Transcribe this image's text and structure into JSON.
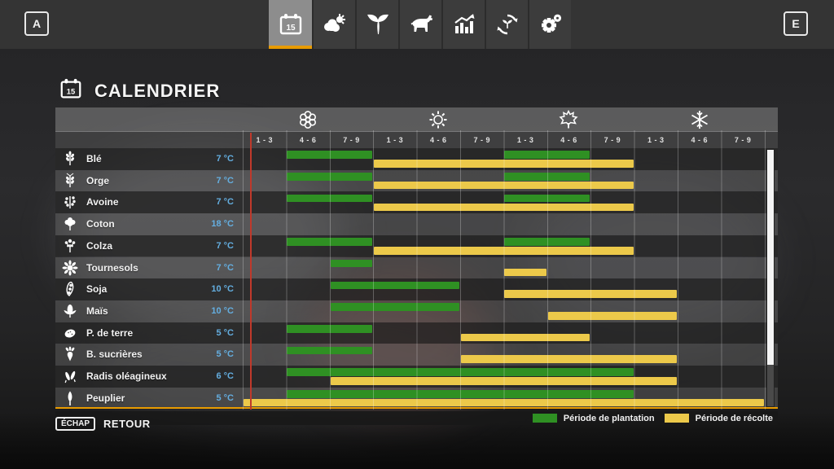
{
  "topbar": {
    "left_key": "A",
    "right_key": "E",
    "tabs": [
      {
        "name": "calendar",
        "active": true
      },
      {
        "name": "weather",
        "active": false
      },
      {
        "name": "crops",
        "active": false
      },
      {
        "name": "animals",
        "active": false
      },
      {
        "name": "statistics",
        "active": false
      },
      {
        "name": "crop-rotation",
        "active": false
      },
      {
        "name": "settings",
        "active": false
      }
    ]
  },
  "header": {
    "title": "CALENDRIER",
    "calendar_day": "15"
  },
  "calendar": {
    "seasons": [
      "spring",
      "summer",
      "autumn",
      "winter"
    ],
    "period_labels": [
      "1 - 3",
      "4 - 6",
      "7 - 9",
      "1 - 3",
      "4 - 6",
      "7 - 9",
      "1 - 3",
      "4 - 6",
      "7 - 9",
      "1 - 3",
      "4 - 6",
      "7 - 9"
    ],
    "rows": [
      {
        "crop": "Blé",
        "temp": "7 °C",
        "icon": "wheat",
        "plant": [
          [
            2,
            3
          ],
          [
            7,
            8
          ]
        ],
        "harvest": [
          [
            4,
            9
          ]
        ]
      },
      {
        "crop": "Orge",
        "temp": "7 °C",
        "icon": "barley",
        "plant": [
          [
            2,
            3
          ],
          [
            7,
            8
          ]
        ],
        "harvest": [
          [
            4,
            9
          ]
        ]
      },
      {
        "crop": "Avoine",
        "temp": "7 °C",
        "icon": "oat",
        "plant": [
          [
            2,
            3
          ],
          [
            7,
            8
          ]
        ],
        "harvest": [
          [
            4,
            9
          ]
        ]
      },
      {
        "crop": "Coton",
        "temp": "18 °C",
        "icon": "cotton",
        "plant": [],
        "harvest": []
      },
      {
        "crop": "Colza",
        "temp": "7 °C",
        "icon": "canola",
        "plant": [
          [
            2,
            3
          ],
          [
            7,
            8
          ]
        ],
        "harvest": [
          [
            4,
            9
          ]
        ]
      },
      {
        "crop": "Tournesols",
        "temp": "7 °C",
        "icon": "sunflower",
        "plant": [
          [
            3,
            3
          ]
        ],
        "harvest": [
          [
            7,
            7
          ]
        ]
      },
      {
        "crop": "Soja",
        "temp": "10 °C",
        "icon": "soybean",
        "plant": [
          [
            3,
            5
          ]
        ],
        "harvest": [
          [
            7,
            10
          ]
        ]
      },
      {
        "crop": "Maïs",
        "temp": "10 °C",
        "icon": "corn",
        "plant": [
          [
            3,
            5
          ]
        ],
        "harvest": [
          [
            8,
            10
          ]
        ]
      },
      {
        "crop": "P. de terre",
        "temp": "5 °C",
        "icon": "potato",
        "plant": [
          [
            2,
            3
          ]
        ],
        "harvest": [
          [
            6,
            8
          ]
        ]
      },
      {
        "crop": "B. sucrières",
        "temp": "5 °C",
        "icon": "sugar-beet",
        "plant": [
          [
            2,
            3
          ]
        ],
        "harvest": [
          [
            6,
            10
          ]
        ]
      },
      {
        "crop": "Radis oléagineux",
        "temp": "6 °C",
        "icon": "oilseed-radish",
        "plant": [
          [
            2,
            9
          ]
        ],
        "harvest": [
          [
            3,
            10
          ]
        ]
      },
      {
        "crop": "Peuplier",
        "temp": "5 °C",
        "icon": "poplar",
        "plant": [
          [
            2,
            9
          ]
        ],
        "harvest": [
          [
            1,
            12
          ]
        ],
        "selected": true
      }
    ],
    "legend": [
      {
        "color": "#2f9023",
        "label": "Période de plantation"
      },
      {
        "color": "#ecc94a",
        "label": "Période de récolte"
      }
    ],
    "colors": {
      "plant": "#2f9023",
      "harvest": "#ecc94a",
      "marker": "#c0392b",
      "accent": "#e89b00",
      "temp_text": "#64aee0"
    },
    "current_marker": {
      "column": 1,
      "fraction": 0.17
    }
  },
  "footer": {
    "key": "ÉCHAP",
    "label": "RETOUR"
  }
}
